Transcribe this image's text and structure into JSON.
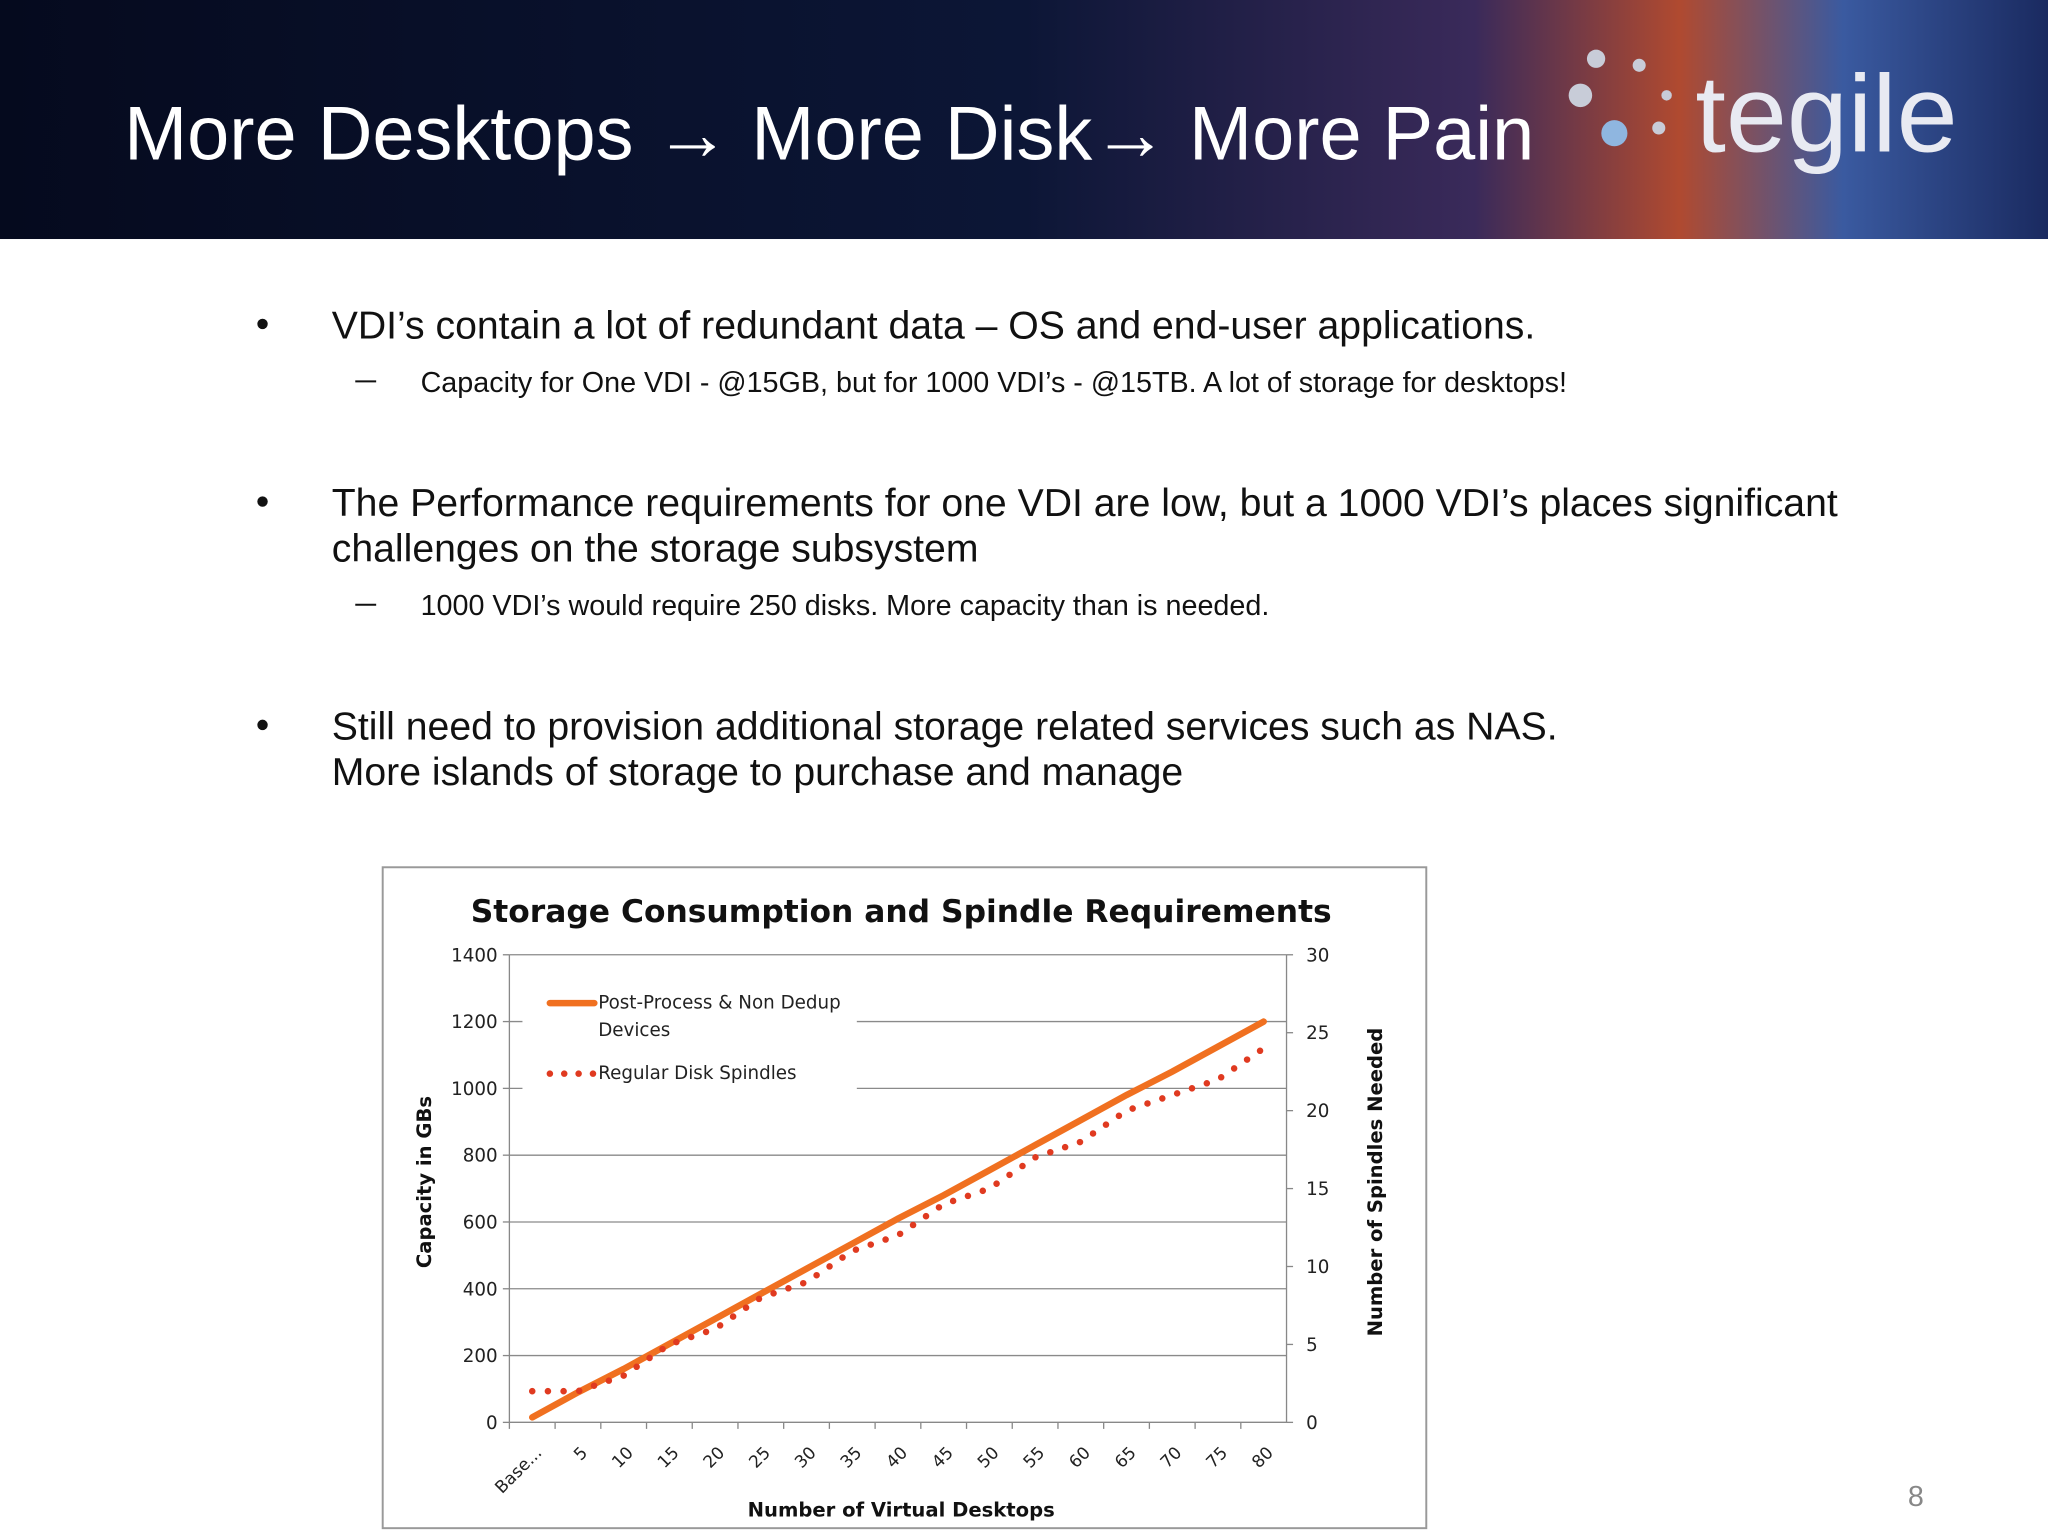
{
  "header": {
    "title": "More Desktops → More Disk→ More Pain",
    "logo": "tegile"
  },
  "bullets": [
    {
      "lines": [
        "VDI’s contain a lot of redundant data – OS and end-user applications."
      ],
      "sub": "Capacity for One VDI - @15GB, but for 1000 VDI’s - @15TB. A lot of storage for desktops!"
    },
    {
      "lines": [
        "The Performance requirements for one VDI are low, but a 1000 VDI’s places significant",
        "challenges on the storage subsystem"
      ],
      "sub": "1000 VDI’s would require 250 disks. More capacity than is needed."
    },
    {
      "lines": [
        "Still need to provision additional storage related services such as NAS.",
        "More islands of storage to purchase and manage"
      ]
    }
  ],
  "chart_data": {
    "type": "line",
    "title": "Storage Consumption and Spindle Requirements",
    "x_label": "Number of Virtual Desktops",
    "y_label": "Capacity in GBs",
    "y2_label": "Number of Spindles Needed",
    "categories": [
      "Base...",
      "5",
      "10",
      "15",
      "20",
      "25",
      "30",
      "35",
      "40",
      "45",
      "50",
      "55",
      "60",
      "65",
      "70",
      "75",
      "80"
    ],
    "series": [
      {
        "name": "Post-Process & Non Dedup Devices",
        "color": "#f07020",
        "style": "solid",
        "values": [
          15,
          90,
          160,
          235,
          310,
          385,
          460,
          535,
          610,
          680,
          755,
          830,
          905,
          980,
          1050,
          1125,
          1200
        ]
      },
      {
        "name": "Regular Disk Spindles",
        "color": "#e03a20",
        "style": "dotted",
        "axis": "y2",
        "values": [
          2,
          2,
          3,
          5,
          6,
          8,
          9,
          11,
          12,
          14,
          15,
          17,
          18,
          20,
          21,
          22,
          24
        ]
      }
    ],
    "ylim": [
      0,
      1400
    ],
    "yticks": [
      0,
      200,
      400,
      600,
      800,
      1000,
      1200,
      1400
    ],
    "y2lim": [
      0,
      30
    ],
    "y2ticks": [
      0,
      5,
      10,
      15,
      20,
      25,
      30
    ],
    "grid": true,
    "legend": "top-left"
  },
  "page_number": "8"
}
